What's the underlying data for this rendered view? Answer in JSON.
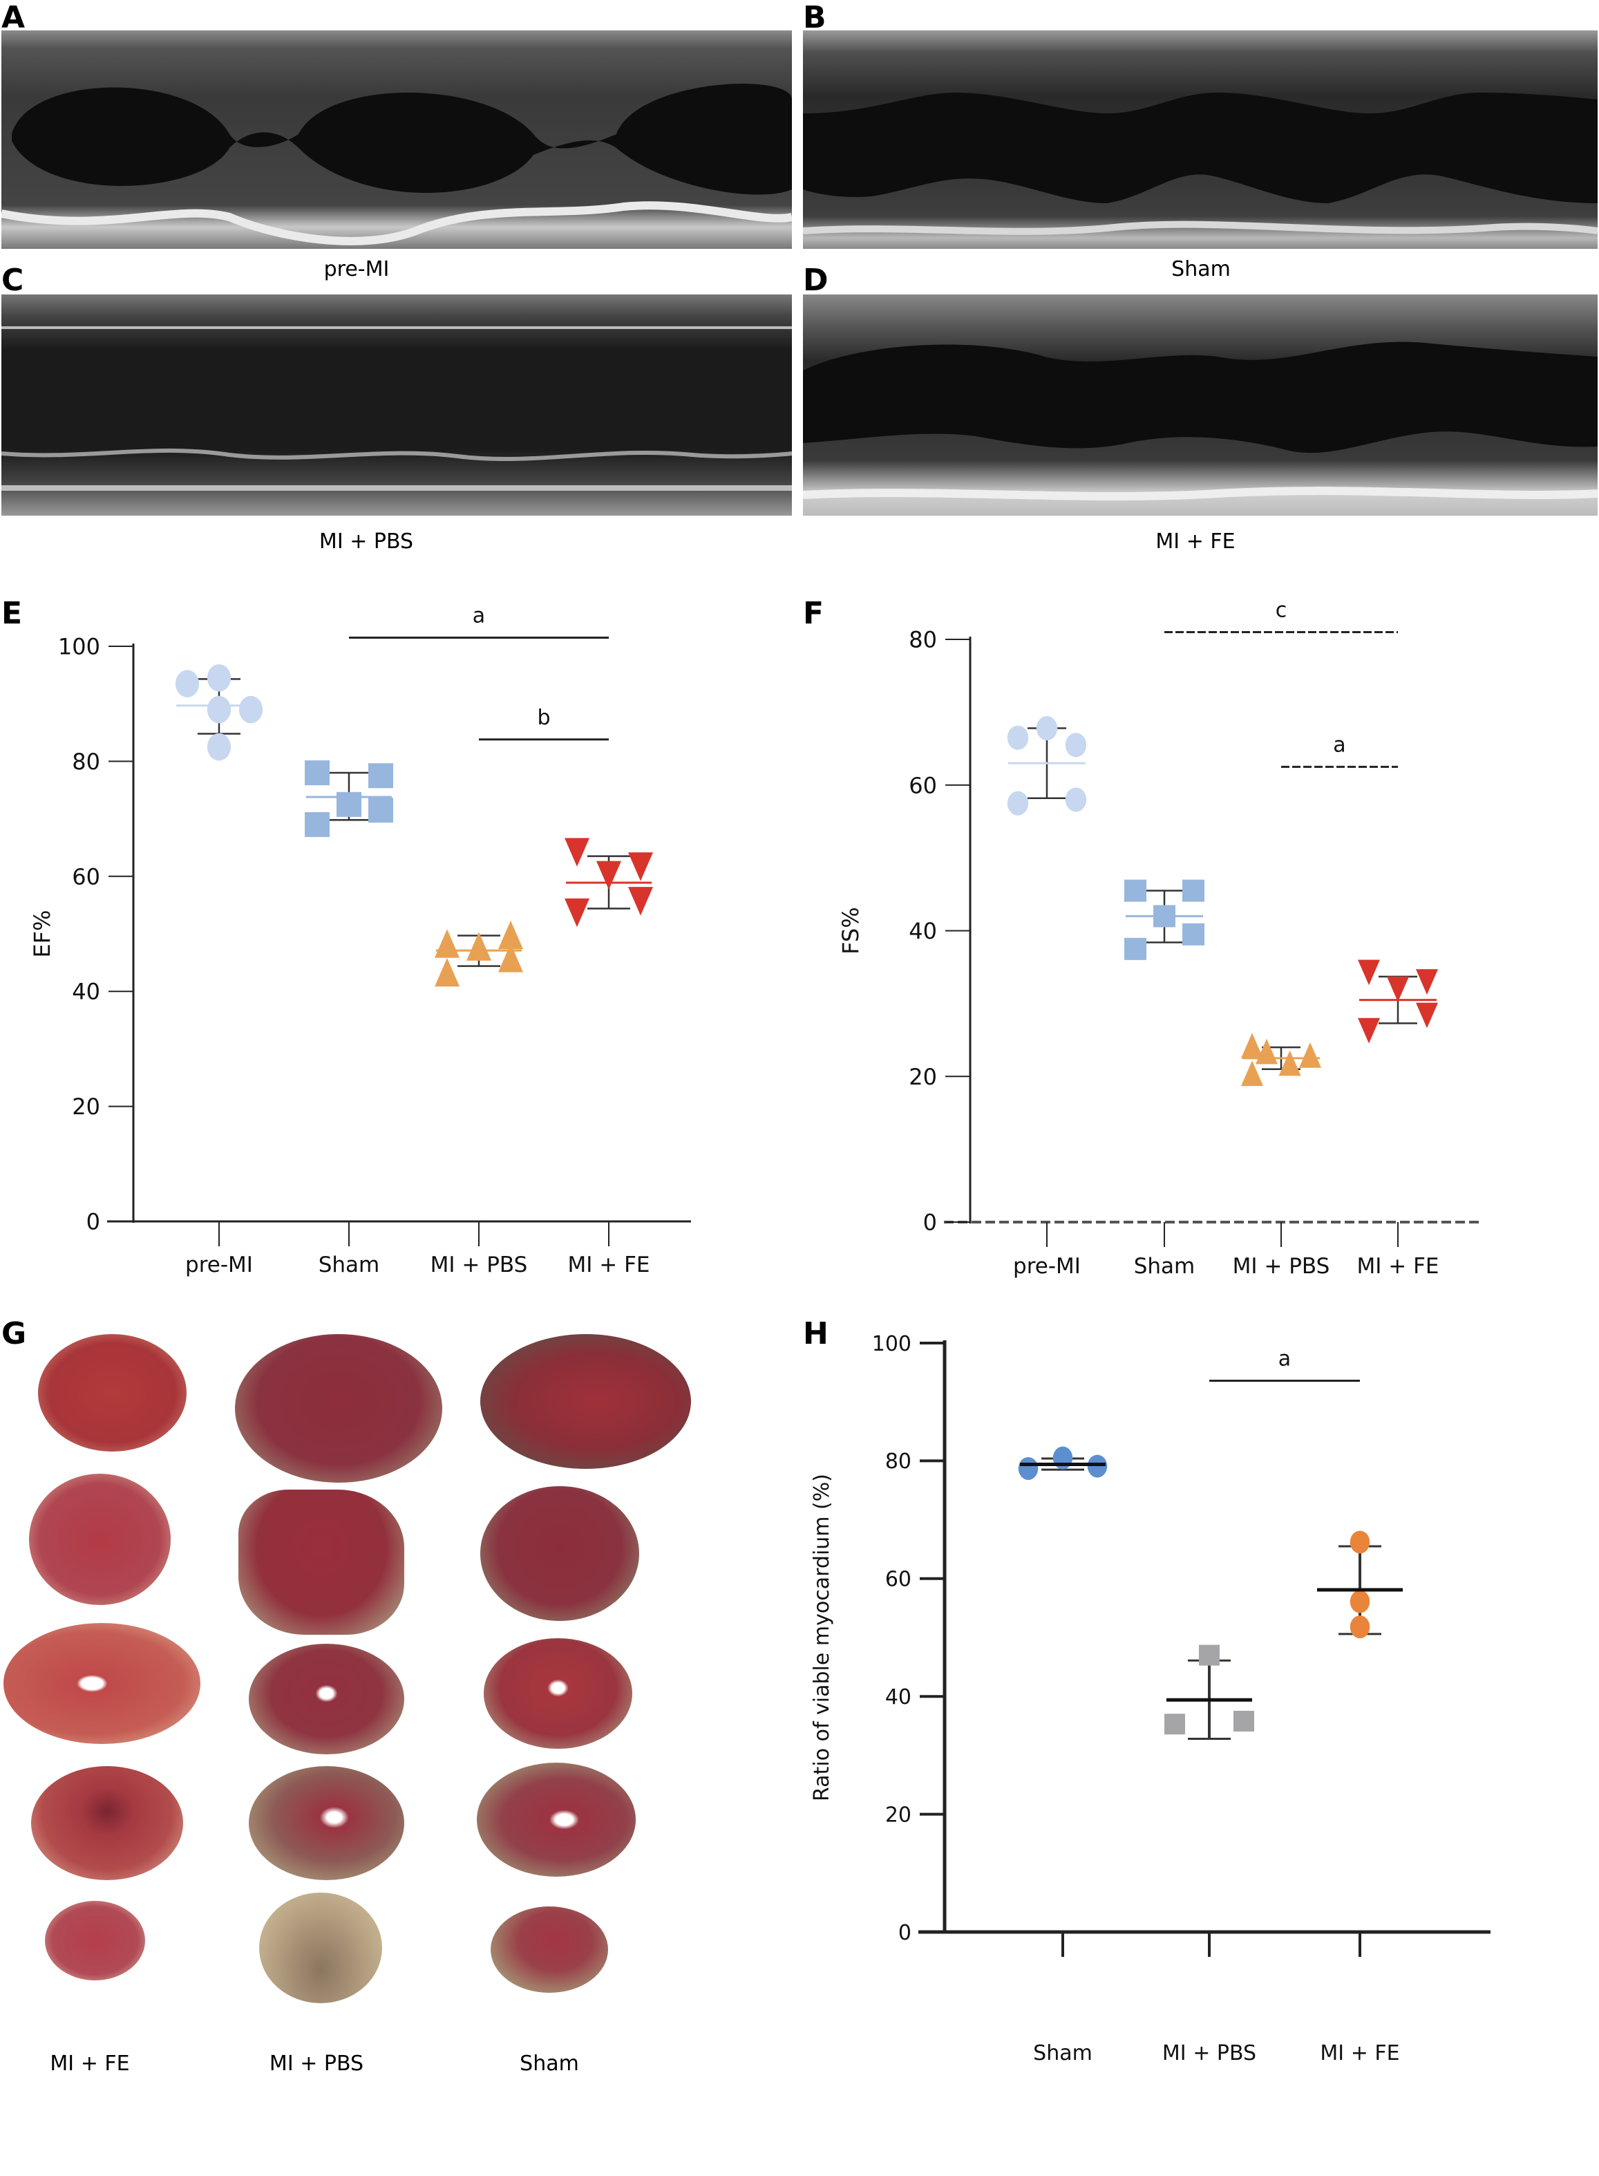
{
  "panels": {
    "A": {
      "letter": "A",
      "caption": "pre-MI"
    },
    "B": {
      "letter": "B",
      "caption": "Sham"
    },
    "C": {
      "letter": "C",
      "caption": "MI + PBS"
    },
    "D": {
      "letter": "D",
      "caption": "MI + FE"
    },
    "E": {
      "letter": "E"
    },
    "F": {
      "letter": "F"
    },
    "G": {
      "letter": "G",
      "column_labels": [
        "MI + FE",
        "MI + PBS",
        "Sham"
      ]
    },
    "H": {
      "letter": "H"
    }
  },
  "chart_data": [
    {
      "id": "E",
      "type": "scatter",
      "title": "",
      "xlabel": "",
      "ylabel": "EF%",
      "ylim": [
        0,
        100
      ],
      "yticks": [
        0,
        20,
        40,
        60,
        80,
        100
      ],
      "categories": [
        "pre-MI",
        "Sham",
        "MI + PBS",
        "MI + FE"
      ],
      "grid": false,
      "series": [
        {
          "name": "pre-MI",
          "marker": "circle",
          "color": "#c7d7ef",
          "values": [
            93.5,
            94.5,
            89,
            89,
            82.5
          ],
          "offsets": [
            -1,
            0,
            0,
            1,
            0
          ],
          "mean": 89.7,
          "err_high": 94.3,
          "err_low": 84.8
        },
        {
          "name": "Sham",
          "marker": "square",
          "color": "#97b6de",
          "values": [
            78,
            72.5,
            69,
            77.5,
            71.5
          ],
          "offsets": [
            -1,
            0,
            -1,
            1,
            1
          ],
          "mean": 73.8,
          "err_high": 78,
          "err_low": 69.8
        },
        {
          "name": "MI + PBS",
          "marker": "triangle-up",
          "color": "#e8a153",
          "values": [
            48,
            47.5,
            43,
            49.5,
            45.5
          ],
          "offsets": [
            -1,
            0,
            -1,
            1,
            1
          ],
          "mean": 47.1,
          "err_high": 49.7,
          "err_low": 44.4
        },
        {
          "name": "MI + FE",
          "marker": "triangle-down",
          "color": "#d9342b",
          "values": [
            64.5,
            60.5,
            54,
            62,
            56
          ],
          "offsets": [
            -1,
            0,
            -1,
            1,
            1
          ],
          "mean": 58.9,
          "err_high": 63.5,
          "err_low": 54.4
        }
      ],
      "significance": [
        {
          "from": "Sham",
          "to": "MI + FE",
          "label": "a",
          "y": 101.5
        },
        {
          "from": "MI + PBS",
          "to": "MI + FE",
          "label": "b",
          "y": 83.8
        }
      ]
    },
    {
      "id": "F",
      "type": "scatter",
      "title": "",
      "xlabel": "",
      "ylabel": "FS%",
      "ylim": [
        0,
        80
      ],
      "yticks": [
        0,
        20,
        40,
        60,
        80
      ],
      "categories": [
        "pre-MI",
        "Sham",
        "MI + PBS",
        "MI + FE"
      ],
      "grid": false,
      "series": [
        {
          "name": "pre-MI",
          "marker": "circle",
          "color": "#c7d7ef",
          "values": [
            66.5,
            67.8,
            65.5,
            57.5,
            58
          ],
          "offsets": [
            -1,
            0,
            1,
            -1,
            1
          ],
          "mean": 63,
          "err_high": 67.8,
          "err_low": 58.2
        },
        {
          "name": "Sham",
          "marker": "square",
          "color": "#97b6de",
          "values": [
            45.5,
            42,
            37.5,
            45.5,
            39.5
          ],
          "offsets": [
            -1,
            0,
            -1,
            1,
            1
          ],
          "mean": 42,
          "err_high": 45.5,
          "err_low": 38.4
        },
        {
          "name": "MI + PBS",
          "marker": "triangle-up",
          "color": "#e8a153",
          "values": [
            24,
            23.2,
            20.2,
            21.6,
            22.7
          ],
          "offsets": [
            -1,
            -0.5,
            -1,
            0.3,
            1
          ],
          "mean": 22.5,
          "err_high": 24,
          "err_low": 21
        },
        {
          "name": "MI + FE",
          "marker": "triangle-down",
          "color": "#d9342b",
          "values": [
            34.5,
            32.2,
            26.5,
            33.2,
            28.6
          ],
          "offsets": [
            -1,
            0,
            -1,
            1,
            1
          ],
          "mean": 30.5,
          "err_high": 33.7,
          "err_low": 27.3
        }
      ],
      "significance": [
        {
          "from": "Sham",
          "to": "MI + FE",
          "label": "c",
          "y": 81
        },
        {
          "from": "MI + PBS",
          "to": "MI + FE",
          "label": "a",
          "y": 62.5
        }
      ]
    },
    {
      "id": "H",
      "type": "scatter",
      "title": "",
      "xlabel": "",
      "ylabel": "Ratio of viable myocardium (%)",
      "ylim": [
        0,
        100
      ],
      "yticks": [
        0,
        20,
        40,
        60,
        80,
        100
      ],
      "categories": [
        "Sham",
        "MI + PBS",
        "MI + FE"
      ],
      "grid": false,
      "series": [
        {
          "name": "Sham",
          "marker": "circle",
          "color": "#5b8fd0",
          "values": [
            78.7,
            80.5,
            79.1
          ],
          "offsets": [
            -1,
            0,
            1
          ],
          "mean": 79.4,
          "err_high": 80.4,
          "err_low": 78.5
        },
        {
          "name": "MI + PBS",
          "marker": "square",
          "color": "#a5a5a8",
          "values": [
            35.3,
            47,
            35.8
          ],
          "offsets": [
            -1,
            0,
            1
          ],
          "mean": 39.4,
          "err_high": 46.1,
          "err_low": 32.8
        },
        {
          "name": "MI + FE",
          "marker": "circle",
          "color": "#e9853a",
          "values": [
            66.2,
            56.1,
            51.8
          ],
          "offsets": [
            0,
            0,
            0
          ],
          "mean": 58.1,
          "err_high": 65.5,
          "err_low": 50.6
        }
      ],
      "significance": [
        {
          "from": "MI + PBS",
          "to": "MI + FE",
          "label": "a",
          "y": 93.6
        }
      ]
    }
  ]
}
